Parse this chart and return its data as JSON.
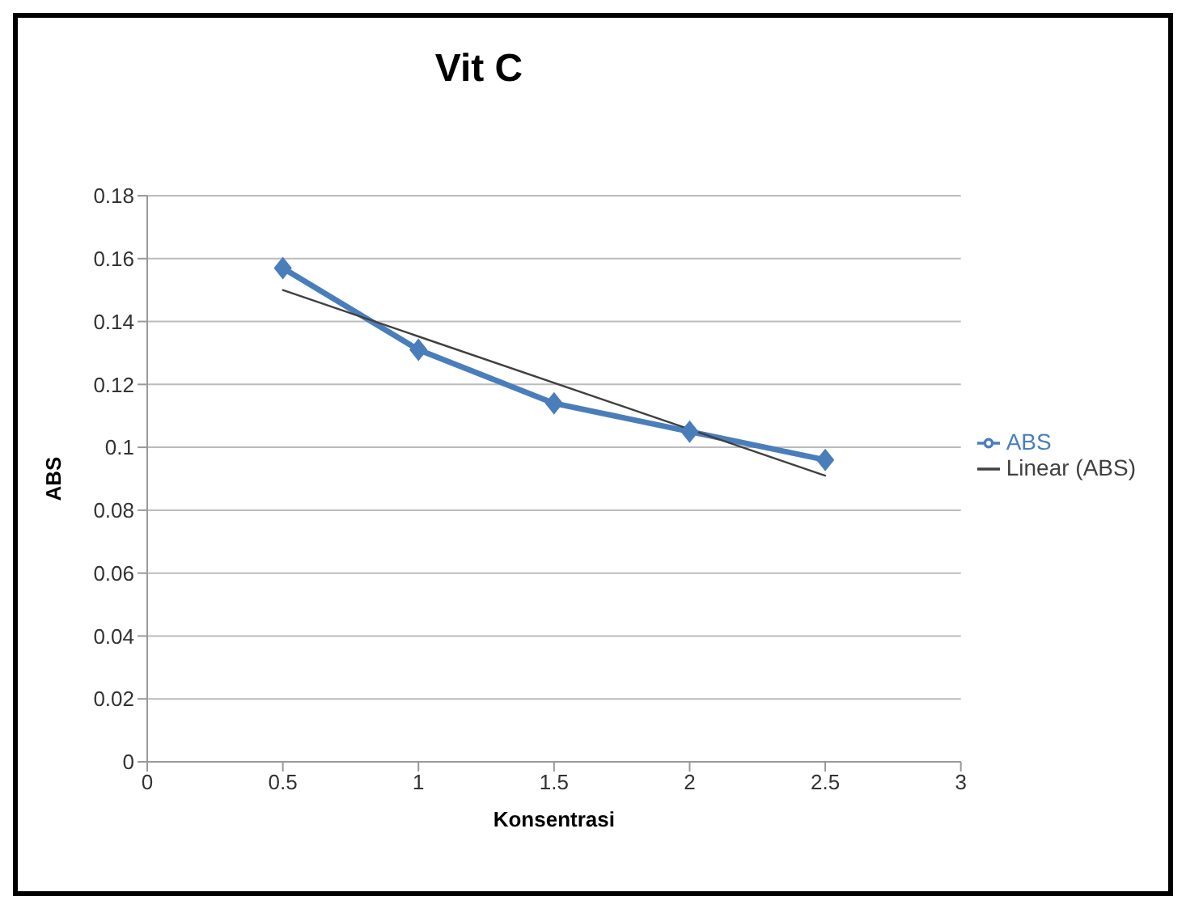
{
  "chart_data": {
    "type": "line",
    "title": "Vit C",
    "xlabel": "Konsentrasi",
    "ylabel": "ABS",
    "x": [
      0.5,
      1,
      1.5,
      2,
      2.5
    ],
    "series": [
      {
        "name": "ABS",
        "color": "#4a7ebb",
        "values": [
          0.157,
          0.131,
          0.114,
          0.105,
          0.096
        ],
        "marker": "diamond"
      },
      {
        "name": "Linear (ABS)",
        "type": "line",
        "color": "#404040",
        "x": [
          0.5,
          2.5
        ],
        "values": [
          0.15,
          0.091
        ],
        "marker": "none"
      }
    ],
    "xlim": [
      0,
      3
    ],
    "xticks": [
      0,
      0.5,
      1,
      1.5,
      2,
      2.5,
      3
    ],
    "ylim": [
      0,
      0.18
    ],
    "yticks": [
      0,
      0.02,
      0.04,
      0.06,
      0.08,
      0.1,
      0.12,
      0.14,
      0.16,
      0.18
    ],
    "grid": "y",
    "legend": "right"
  }
}
